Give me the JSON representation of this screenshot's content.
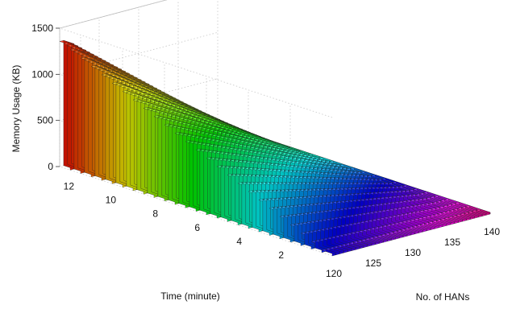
{
  "chart_data": {
    "type": "bar3d",
    "zlabel": "Memory Usage (KB)",
    "xlabel": "No. of HANs",
    "ylabel": "Time (minute)",
    "zlim": [
      0,
      1500
    ],
    "z_ticks": [
      "0",
      "500",
      "1000",
      "1500"
    ],
    "x_range": [
      120,
      140
    ],
    "x_ticks": [
      "120",
      "125",
      "130",
      "135",
      "140"
    ],
    "y_range": [
      0,
      13
    ],
    "y_ticks": [
      "2",
      "4",
      "6",
      "8",
      "10",
      "12"
    ],
    "grid": true,
    "colormap": "hsv",
    "peak": {
      "han": 120,
      "time": 13,
      "memory": 1400
    },
    "surface_samples": [
      {
        "time": 13,
        "han": 120,
        "memory": 1400
      },
      {
        "time": 12,
        "han": 120,
        "memory": 1290
      },
      {
        "time": 11,
        "han": 120,
        "memory": 1180
      },
      {
        "time": 10,
        "han": 120,
        "memory": 1080
      },
      {
        "time": 9,
        "han": 120,
        "memory": 970
      },
      {
        "time": 8,
        "han": 120,
        "memory": 860
      },
      {
        "time": 7,
        "han": 120,
        "memory": 750
      },
      {
        "time": 6,
        "han": 120,
        "memory": 650
      },
      {
        "time": 5,
        "han": 120,
        "memory": 540
      },
      {
        "time": 4,
        "han": 120,
        "memory": 430
      },
      {
        "time": 3,
        "han": 120,
        "memory": 320
      },
      {
        "time": 2,
        "han": 120,
        "memory": 220
      },
      {
        "time": 1,
        "han": 120,
        "memory": 110
      },
      {
        "time": 0,
        "han": 120,
        "memory": 0
      },
      {
        "time": 13,
        "han": 140,
        "memory": 0
      },
      {
        "time": 0,
        "han": 140,
        "memory": 0
      }
    ]
  }
}
